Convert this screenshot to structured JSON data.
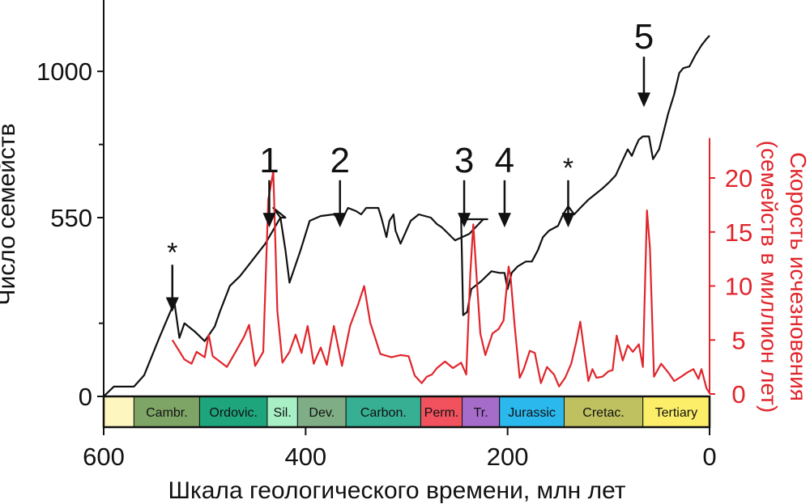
{
  "chart_data": {
    "type": "line",
    "x_axis": {
      "label": "Шкала геологического времени, млн лет",
      "range": [
        600,
        0
      ],
      "reversed": true,
      "ticks": [
        600,
        400,
        200,
        0
      ],
      "tick_labels": [
        "600",
        "400",
        "200",
        "0"
      ]
    },
    "y_left": {
      "label": "Число семейств",
      "range": [
        0,
        1150
      ],
      "tick_labels": [
        "0",
        "550",
        "1000"
      ],
      "ticks_major": [
        0,
        550,
        1000
      ],
      "ticks_minor": [
        225,
        775
      ]
    },
    "y_right": {
      "label_line1": "Скорость исчезновения",
      "label_line2": "(семейств в миллион лет)",
      "range": [
        0,
        24
      ],
      "ticks": [
        0,
        5,
        10,
        15,
        20
      ],
      "tick_labels": [
        "0",
        "5",
        "10",
        "15",
        "20"
      ],
      "color": "#e0252b"
    },
    "series": [
      {
        "axis": "left",
        "color": "#111111",
        "points": [
          [
            600,
            0
          ],
          [
            590,
            30
          ],
          [
            578,
            30
          ],
          [
            570,
            30
          ],
          [
            560,
            65
          ],
          [
            545,
            180
          ],
          [
            530,
            290
          ],
          [
            525,
            180
          ],
          [
            520,
            225
          ],
          [
            510,
            200
          ],
          [
            500,
            170
          ],
          [
            490,
            215
          ],
          [
            485,
            260
          ],
          [
            475,
            340
          ],
          [
            465,
            370
          ],
          [
            455,
            410
          ],
          [
            440,
            470
          ],
          [
            425,
            550
          ],
          [
            420,
            550
          ],
          [
            432,
            580
          ],
          [
            425,
            550
          ],
          [
            420,
            450
          ],
          [
            416,
            350
          ],
          [
            405,
            450
          ],
          [
            396,
            540
          ],
          [
            385,
            555
          ],
          [
            372,
            560
          ],
          [
            365,
            540
          ],
          [
            358,
            580
          ],
          [
            350,
            570
          ],
          [
            345,
            560
          ],
          [
            340,
            580
          ],
          [
            328,
            580
          ],
          [
            325,
            550
          ],
          [
            320,
            490
          ],
          [
            317,
            540
          ],
          [
            313,
            560
          ],
          [
            311,
            510
          ],
          [
            306,
            470
          ],
          [
            296,
            540
          ],
          [
            288,
            560
          ],
          [
            276,
            550
          ],
          [
            270,
            530
          ],
          [
            265,
            520
          ],
          [
            252,
            480
          ],
          [
            238,
            500
          ],
          [
            224,
            545
          ],
          [
            220,
            545
          ],
          [
            246,
            545
          ],
          [
            244,
            250
          ],
          [
            240,
            260
          ],
          [
            236,
            330
          ],
          [
            226,
            355
          ],
          [
            216,
            385
          ],
          [
            208,
            380
          ],
          [
            203,
            380
          ],
          [
            200,
            330
          ],
          [
            196,
            380
          ],
          [
            190,
            400
          ],
          [
            182,
            415
          ],
          [
            176,
            415
          ],
          [
            170,
            450
          ],
          [
            165,
            490
          ],
          [
            159,
            510
          ],
          [
            150,
            525
          ],
          [
            145,
            560
          ],
          [
            140,
            585
          ],
          [
            134,
            560
          ],
          [
            128,
            580
          ],
          [
            120,
            605
          ],
          [
            112,
            625
          ],
          [
            106,
            640
          ],
          [
            99,
            660
          ],
          [
            93,
            680
          ],
          [
            87,
            720
          ],
          [
            81,
            760
          ],
          [
            77,
            740
          ],
          [
            73,
            770
          ],
          [
            70,
            790
          ],
          [
            66,
            800
          ],
          [
            60,
            800
          ],
          [
            56,
            730
          ],
          [
            50,
            760
          ],
          [
            45,
            820
          ],
          [
            41,
            870
          ],
          [
            35,
            930
          ],
          [
            30,
            995
          ],
          [
            26,
            1010
          ],
          [
            20,
            1015
          ],
          [
            14,
            1050
          ],
          [
            8,
            1080
          ],
          [
            3,
            1100
          ],
          [
            0,
            1110
          ]
        ]
      },
      {
        "axis": "right",
        "color": "#e0252b",
        "points": [
          [
            532,
            5.0
          ],
          [
            526,
            4.1
          ],
          [
            520,
            3.2
          ],
          [
            513,
            2.8
          ],
          [
            508,
            3.9
          ],
          [
            500,
            3.4
          ],
          [
            496,
            5.5
          ],
          [
            492,
            3.5
          ],
          [
            485,
            3.0
          ],
          [
            478,
            2.5
          ],
          [
            470,
            3.8
          ],
          [
            461,
            5.3
          ],
          [
            456,
            6.4
          ],
          [
            450,
            2.6
          ],
          [
            442,
            3.9
          ],
          [
            437,
            18.0
          ],
          [
            432,
            20.6
          ],
          [
            428,
            7.7
          ],
          [
            423,
            2.9
          ],
          [
            416,
            3.9
          ],
          [
            410,
            5.5
          ],
          [
            404,
            3.8
          ],
          [
            398,
            6.3
          ],
          [
            392,
            2.8
          ],
          [
            385,
            4.3
          ],
          [
            379,
            2.7
          ],
          [
            372,
            6.3
          ],
          [
            364,
            2.6
          ],
          [
            356,
            6.3
          ],
          [
            348,
            8.3
          ],
          [
            342,
            10.0
          ],
          [
            336,
            6.6
          ],
          [
            326,
            3.7
          ],
          [
            315,
            3.4
          ],
          [
            306,
            3.6
          ],
          [
            298,
            3.5
          ],
          [
            292,
            1.7
          ],
          [
            285,
            1.0
          ],
          [
            280,
            1.6
          ],
          [
            275,
            1.8
          ],
          [
            270,
            2.4
          ],
          [
            262,
            3.0
          ],
          [
            254,
            2.4
          ],
          [
            246,
            2.9
          ],
          [
            241,
            1.8
          ],
          [
            237,
            11.0
          ],
          [
            234,
            15.7
          ],
          [
            230,
            9.8
          ],
          [
            227,
            5.6
          ],
          [
            222,
            3.6
          ],
          [
            215,
            5.6
          ],
          [
            209,
            6.0
          ],
          [
            204,
            6.8
          ],
          [
            199,
            11.8
          ],
          [
            197,
            10.8
          ],
          [
            193,
            6.3
          ],
          [
            188,
            1.5
          ],
          [
            184,
            2.3
          ],
          [
            178,
            4.0
          ],
          [
            173,
            3.8
          ],
          [
            167,
            1.0
          ],
          [
            161,
            2.5
          ],
          [
            154,
            1.8
          ],
          [
            149,
            0.7
          ],
          [
            143,
            1.5
          ],
          [
            137,
            2.8
          ],
          [
            132,
            4.8
          ],
          [
            128,
            6.7
          ],
          [
            124,
            3.9
          ],
          [
            120,
            1.2
          ],
          [
            116,
            2.3
          ],
          [
            112,
            1.5
          ],
          [
            106,
            1.6
          ],
          [
            100,
            2.1
          ],
          [
            96,
            2.2
          ],
          [
            92,
            5.4
          ],
          [
            86,
            3.1
          ],
          [
            81,
            4.5
          ],
          [
            76,
            3.9
          ],
          [
            70,
            4.6
          ],
          [
            66,
            2.5
          ],
          [
            62,
            17.0
          ],
          [
            59,
            13.5
          ],
          [
            55,
            1.6
          ],
          [
            48,
            2.8
          ],
          [
            41,
            2.0
          ],
          [
            35,
            1.2
          ],
          [
            28,
            1.6
          ],
          [
            22,
            2.0
          ],
          [
            16,
            2.3
          ],
          [
            11,
            1.4
          ],
          [
            8,
            2.3
          ],
          [
            3,
            0.5
          ],
          [
            0,
            0.1
          ]
        ]
      }
    ],
    "periods": [
      {
        "name": "",
        "start": 600,
        "end": 570,
        "color": "#fdf6bf"
      },
      {
        "name": "Cambr.",
        "start": 570,
        "end": 505,
        "color": "#7fa566"
      },
      {
        "name": "Ordovic.",
        "start": 505,
        "end": 438,
        "color": "#1ea57c"
      },
      {
        "name": "Sil.",
        "start": 438,
        "end": 408,
        "color": "#a9efc6"
      },
      {
        "name": "Dev.",
        "start": 408,
        "end": 360,
        "color": "#7fad85"
      },
      {
        "name": "Carbon.",
        "start": 360,
        "end": 286,
        "color": "#36af93"
      },
      {
        "name": "Perm.",
        "start": 286,
        "end": 245,
        "color": "#f1525e"
      },
      {
        "name": "Tr.",
        "start": 245,
        "end": 208,
        "color": "#a66cca"
      },
      {
        "name": "Jurassic",
        "start": 208,
        "end": 144,
        "color": "#2bb8ed"
      },
      {
        "name": "Cretac.",
        "start": 144,
        "end": 66,
        "color": "#bfc160"
      },
      {
        "name": "Tertiary",
        "start": 66,
        "end": 0,
        "color": "#fcee69"
      }
    ],
    "annotations": [
      {
        "label": "*",
        "x": 532,
        "arrow_top_y": 405,
        "arrow_bottom_y": 260
      },
      {
        "label": "1",
        "x": 436,
        "arrow_top_y": 665,
        "arrow_bottom_y": 520
      },
      {
        "label": "2",
        "x": 366,
        "arrow_top_y": 665,
        "arrow_bottom_y": 520
      },
      {
        "label": "3",
        "x": 243,
        "arrow_top_y": 665,
        "arrow_bottom_y": 520
      },
      {
        "label": "4",
        "x": 203,
        "arrow_top_y": 665,
        "arrow_bottom_y": 520
      },
      {
        "label": "*",
        "x": 140,
        "arrow_top_y": 665,
        "arrow_bottom_y": 520
      },
      {
        "label": "5",
        "x": 65,
        "arrow_top_y": 1045,
        "arrow_bottom_y": 890
      }
    ]
  }
}
